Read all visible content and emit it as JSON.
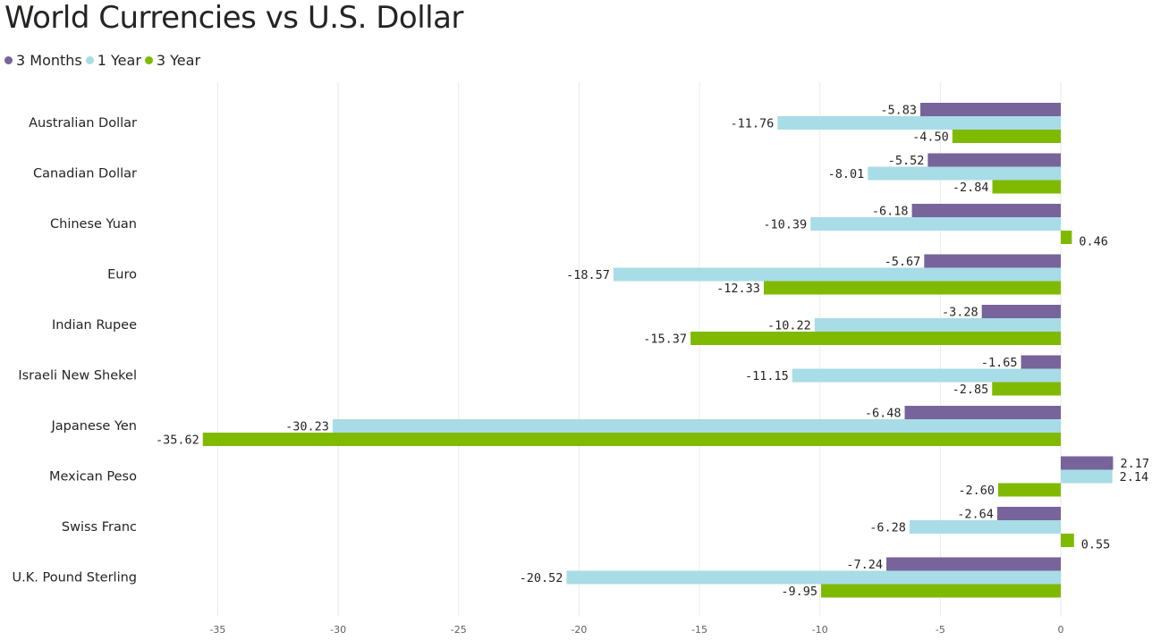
{
  "chart_data": {
    "type": "bar",
    "orientation": "horizontal",
    "title": "World Currencies vs U.S. Dollar",
    "categories": [
      "Australian Dollar",
      "Canadian Dollar",
      "Chinese Yuan",
      "Euro",
      "Indian Rupee",
      "Israeli New Shekel",
      "Japanese Yen",
      "Mexican Peso",
      "Swiss Franc",
      "U.K. Pound Sterling"
    ],
    "series": [
      {
        "name": "3 Months",
        "color": "#76649a",
        "values": [
          -5.83,
          -5.52,
          -6.18,
          -5.67,
          -3.28,
          -1.65,
          -6.48,
          2.17,
          -2.64,
          -7.24
        ],
        "labels": [
          "-5.83",
          "-5.52",
          "-6.18",
          "-5.67",
          "-3.28",
          "-1.65",
          "-6.48",
          "2.17",
          "-2.64",
          "-7.24"
        ]
      },
      {
        "name": "1 Year",
        "color": "#a8dce6",
        "values": [
          -11.76,
          -8.01,
          -10.39,
          -18.57,
          -10.22,
          -11.15,
          -30.23,
          2.14,
          -6.28,
          -20.52
        ],
        "labels": [
          "-11.76",
          "-8.01",
          "-10.39",
          "-18.57",
          "-10.22",
          "-11.15",
          "-30.23",
          "2.14",
          "-6.28",
          "-20.52"
        ]
      },
      {
        "name": "3 Year",
        "color": "#7fba00",
        "values": [
          -4.5,
          -2.84,
          0.46,
          -12.33,
          -15.37,
          -2.85,
          -35.62,
          -2.6,
          0.55,
          -9.95
        ],
        "labels": [
          "-4.50",
          "-2.84",
          "0.46",
          "-12.33",
          "-15.37",
          "-2.85",
          "-35.62",
          "-2.60",
          "0.55",
          "-9.95"
        ]
      }
    ],
    "xticks": [
      -35,
      -30,
      -25,
      -20,
      -15,
      -10,
      -5,
      0
    ],
    "xtick_labels": [
      "-35",
      "-30",
      "-25",
      "-20",
      "-15",
      "-10",
      "-5",
      "0"
    ],
    "xlim": [
      -36.2,
      3.8
    ],
    "grid": true,
    "legend_position": "top-left"
  }
}
